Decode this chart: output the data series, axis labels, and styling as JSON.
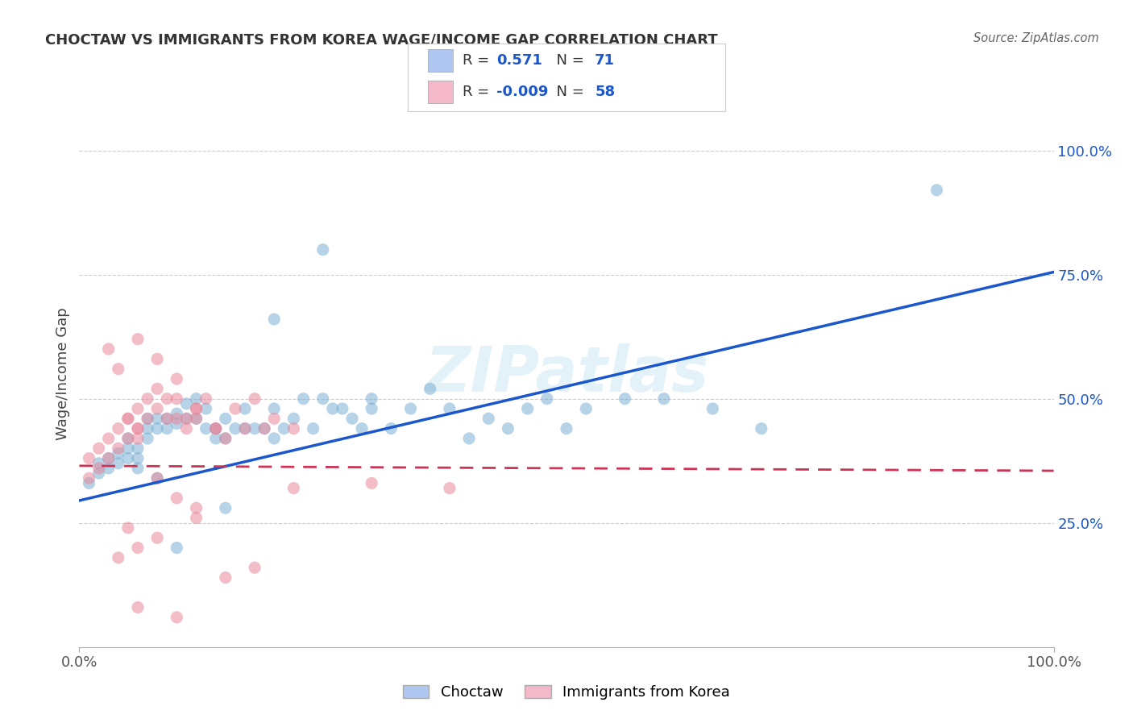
{
  "title": "CHOCTAW VS IMMIGRANTS FROM KOREA WAGE/INCOME GAP CORRELATION CHART",
  "source": "Source: ZipAtlas.com",
  "ylabel": "Wage/Income Gap",
  "watermark": "ZIPatlas",
  "legend_entries": [
    {
      "label": "Choctaw",
      "color": "#aec6f0",
      "R": "0.571",
      "N": "71"
    },
    {
      "label": "Immigrants from Korea",
      "color": "#f4b8c8",
      "R": "-0.009",
      "N": "58"
    }
  ],
  "blue_scatter_x": [
    0.01,
    0.02,
    0.02,
    0.03,
    0.03,
    0.04,
    0.04,
    0.05,
    0.05,
    0.05,
    0.06,
    0.06,
    0.06,
    0.07,
    0.07,
    0.07,
    0.08,
    0.08,
    0.09,
    0.09,
    0.1,
    0.1,
    0.11,
    0.11,
    0.12,
    0.12,
    0.13,
    0.13,
    0.14,
    0.14,
    0.15,
    0.15,
    0.16,
    0.17,
    0.17,
    0.18,
    0.19,
    0.2,
    0.2,
    0.21,
    0.22,
    0.23,
    0.24,
    0.25,
    0.26,
    0.27,
    0.28,
    0.29,
    0.3,
    0.32,
    0.34,
    0.36,
    0.38,
    0.4,
    0.42,
    0.44,
    0.46,
    0.48,
    0.5,
    0.52,
    0.56,
    0.6,
    0.65,
    0.7,
    0.08,
    0.1,
    0.15,
    0.2,
    0.25,
    0.3,
    0.88
  ],
  "blue_scatter_y": [
    0.33,
    0.35,
    0.37,
    0.36,
    0.38,
    0.37,
    0.39,
    0.4,
    0.38,
    0.42,
    0.38,
    0.4,
    0.36,
    0.44,
    0.46,
    0.42,
    0.44,
    0.46,
    0.46,
    0.44,
    0.45,
    0.47,
    0.49,
    0.46,
    0.5,
    0.46,
    0.44,
    0.48,
    0.44,
    0.42,
    0.46,
    0.42,
    0.44,
    0.44,
    0.48,
    0.44,
    0.44,
    0.42,
    0.48,
    0.44,
    0.46,
    0.5,
    0.44,
    0.5,
    0.48,
    0.48,
    0.46,
    0.44,
    0.48,
    0.44,
    0.48,
    0.52,
    0.48,
    0.42,
    0.46,
    0.44,
    0.48,
    0.5,
    0.44,
    0.48,
    0.5,
    0.5,
    0.48,
    0.44,
    0.34,
    0.2,
    0.28,
    0.66,
    0.8,
    0.5,
    0.92
  ],
  "pink_scatter_x": [
    0.01,
    0.01,
    0.02,
    0.02,
    0.03,
    0.03,
    0.04,
    0.04,
    0.05,
    0.05,
    0.06,
    0.06,
    0.06,
    0.07,
    0.07,
    0.08,
    0.08,
    0.09,
    0.09,
    0.1,
    0.1,
    0.11,
    0.11,
    0.12,
    0.12,
    0.13,
    0.14,
    0.15,
    0.16,
    0.17,
    0.18,
    0.19,
    0.2,
    0.22,
    0.03,
    0.04,
    0.05,
    0.06,
    0.08,
    0.1,
    0.12,
    0.14,
    0.06,
    0.08,
    0.1,
    0.12,
    0.15,
    0.18,
    0.22,
    0.3,
    0.05,
    0.08,
    0.12,
    0.38,
    0.06,
    0.1,
    0.04,
    0.06
  ],
  "pink_scatter_y": [
    0.34,
    0.38,
    0.36,
    0.4,
    0.38,
    0.42,
    0.4,
    0.44,
    0.42,
    0.46,
    0.44,
    0.48,
    0.42,
    0.46,
    0.5,
    0.48,
    0.52,
    0.46,
    0.5,
    0.54,
    0.5,
    0.46,
    0.44,
    0.48,
    0.46,
    0.5,
    0.44,
    0.42,
    0.48,
    0.44,
    0.5,
    0.44,
    0.46,
    0.44,
    0.6,
    0.56,
    0.46,
    0.44,
    0.34,
    0.46,
    0.48,
    0.44,
    0.62,
    0.58,
    0.3,
    0.28,
    0.14,
    0.16,
    0.32,
    0.33,
    0.24,
    0.22,
    0.26,
    0.32,
    0.08,
    0.06,
    0.18,
    0.2
  ],
  "blue_line_x": [
    0.0,
    1.0
  ],
  "blue_line_y": [
    0.295,
    0.755
  ],
  "pink_line_x": [
    0.0,
    1.0
  ],
  "pink_line_y": [
    0.365,
    0.355
  ],
  "scatter_alpha": 0.55,
  "scatter_size": 120,
  "blue_color": "#7bafd4",
  "pink_color": "#e8889a",
  "blue_light": "#aec6f0",
  "pink_light": "#f4b8c8",
  "blue_line_color": "#1a56cc",
  "pink_line_color": "#cc3355",
  "ylim": [
    0.0,
    1.1
  ],
  "xlim": [
    0.0,
    1.0
  ],
  "ytick_values": [
    0.25,
    0.5,
    0.75,
    1.0
  ],
  "ytick_labels": [
    "25.0%",
    "50.0%",
    "75.0%",
    "100.0%"
  ],
  "bg_color": "#ffffff",
  "grid_color": "#cccccc"
}
